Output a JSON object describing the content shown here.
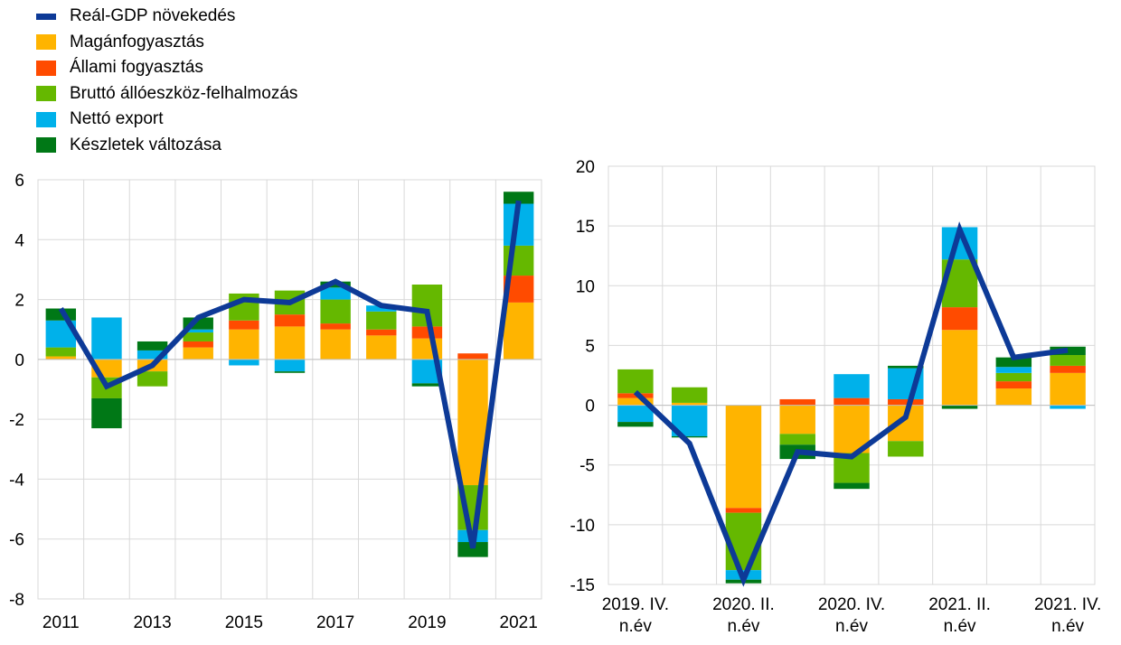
{
  "colors": {
    "gdp": "#0d3a97",
    "private": "#ffb400",
    "government": "#ff4b00",
    "investment": "#65b800",
    "net_export": "#00b1ea",
    "inventories": "#007816",
    "grid": "#d9d9d9"
  },
  "legend": [
    {
      "key": "gdp",
      "label": "Reál-GDP növekedés",
      "kind": "line"
    },
    {
      "key": "private",
      "label": "Magánfogyasztás",
      "kind": "box"
    },
    {
      "key": "government",
      "label": "Állami fogyasztás",
      "kind": "box"
    },
    {
      "key": "investment",
      "label": "Bruttó állóeszköz-felhalmozás",
      "kind": "box"
    },
    {
      "key": "net_export",
      "label": "Nettó export",
      "kind": "box"
    },
    {
      "key": "inventories",
      "label": "Készletek változása",
      "kind": "box"
    }
  ],
  "chart_data": [
    {
      "type": "bar",
      "stacked": true,
      "categories": [
        "2011",
        "2012",
        "2013",
        "2014",
        "2015",
        "2016",
        "2017",
        "2018",
        "2019",
        "2020",
        "2021"
      ],
      "x_tick_labels": [
        "2011",
        "2013",
        "2015",
        "2017",
        "2019",
        "2021"
      ],
      "ylim": [
        -8,
        6
      ],
      "y_ticks": [
        -8,
        -6,
        -4,
        -2,
        0,
        2,
        4,
        6
      ],
      "grid": true,
      "series": [
        {
          "key": "private",
          "name": "Magánfogyasztás",
          "values": [
            0.1,
            -0.6,
            -0.4,
            0.4,
            1.0,
            1.1,
            1.0,
            0.8,
            0.7,
            -4.2,
            1.9
          ]
        },
        {
          "key": "government",
          "name": "Állami fogyasztás",
          "values": [
            0.0,
            0.0,
            0.0,
            0.2,
            0.3,
            0.4,
            0.2,
            0.2,
            0.4,
            0.2,
            0.9
          ]
        },
        {
          "key": "investment",
          "name": "Bruttó állóeszköz-felhalmozás",
          "values": [
            0.3,
            -0.7,
            -0.5,
            0.3,
            0.9,
            0.8,
            0.8,
            0.6,
            1.4,
            -1.5,
            1.0
          ]
        },
        {
          "key": "net_export",
          "name": "Nettó export",
          "values": [
            0.9,
            1.4,
            0.3,
            0.1,
            -0.2,
            -0.4,
            0.4,
            0.2,
            -0.8,
            -0.4,
            1.4
          ]
        },
        {
          "key": "inventories",
          "name": "Készletek változása",
          "values": [
            0.4,
            -1.0,
            0.3,
            0.4,
            0.0,
            -0.05,
            0.2,
            0.0,
            -0.1,
            -0.5,
            0.4
          ]
        }
      ],
      "line": {
        "key": "gdp",
        "name": "Reál-GDP növekedés",
        "values": [
          1.7,
          -0.9,
          -0.2,
          1.4,
          2.0,
          1.9,
          2.6,
          1.8,
          1.6,
          -6.3,
          5.3
        ]
      }
    },
    {
      "type": "bar",
      "stacked": true,
      "categories": [
        "2019. IV. n.év",
        "2020. I. n.év",
        "2020. II. n.év",
        "2020. III. n.év",
        "2020. IV. n.év",
        "2021. I. n.év",
        "2021. II. n.év",
        "2021. III. n.év",
        "2021. IV. n.év"
      ],
      "x_tick_labels": [
        {
          "index": 0,
          "line1": "2019. IV.",
          "line2": "n.év"
        },
        {
          "index": 2,
          "line1": "2020. II.",
          "line2": "n.év"
        },
        {
          "index": 4,
          "line1": "2020. IV.",
          "line2": "n.év"
        },
        {
          "index": 6,
          "line1": "2021. II.",
          "line2": "n.év"
        },
        {
          "index": 8,
          "line1": "2021. IV.",
          "line2": "n.év"
        }
      ],
      "ylim": [
        -15,
        20
      ],
      "y_ticks": [
        -15,
        -10,
        -5,
        0,
        5,
        10,
        15,
        20
      ],
      "grid": true,
      "series": [
        {
          "key": "private",
          "name": "Magánfogyasztás",
          "values": [
            0.6,
            0.2,
            -8.6,
            -2.4,
            -4.0,
            -3.0,
            6.3,
            1.4,
            2.7
          ]
        },
        {
          "key": "government",
          "name": "Állami fogyasztás",
          "values": [
            0.4,
            0.0,
            -0.4,
            0.5,
            0.6,
            0.5,
            1.9,
            0.6,
            0.6
          ]
        },
        {
          "key": "investment",
          "name": "Bruttó állóeszköz-felhalmozás",
          "values": [
            2.0,
            1.3,
            -4.8,
            -0.9,
            -2.5,
            -1.3,
            4.0,
            0.7,
            0.9
          ]
        },
        {
          "key": "net_export",
          "name": "Nettó export",
          "values": [
            -1.4,
            -2.6,
            -0.8,
            0.0,
            2.0,
            2.6,
            2.7,
            0.5,
            -0.3
          ]
        },
        {
          "key": "inventories",
          "name": "Készletek változása",
          "values": [
            -0.4,
            -0.1,
            -0.3,
            -1.2,
            -0.5,
            0.2,
            -0.3,
            0.8,
            0.7
          ]
        }
      ],
      "line": {
        "key": "gdp",
        "name": "Reál-GDP növekedés",
        "values": [
          1.1,
          -3.2,
          -14.6,
          -3.9,
          -4.3,
          -1.0,
          14.7,
          4.0,
          4.6
        ]
      }
    }
  ]
}
